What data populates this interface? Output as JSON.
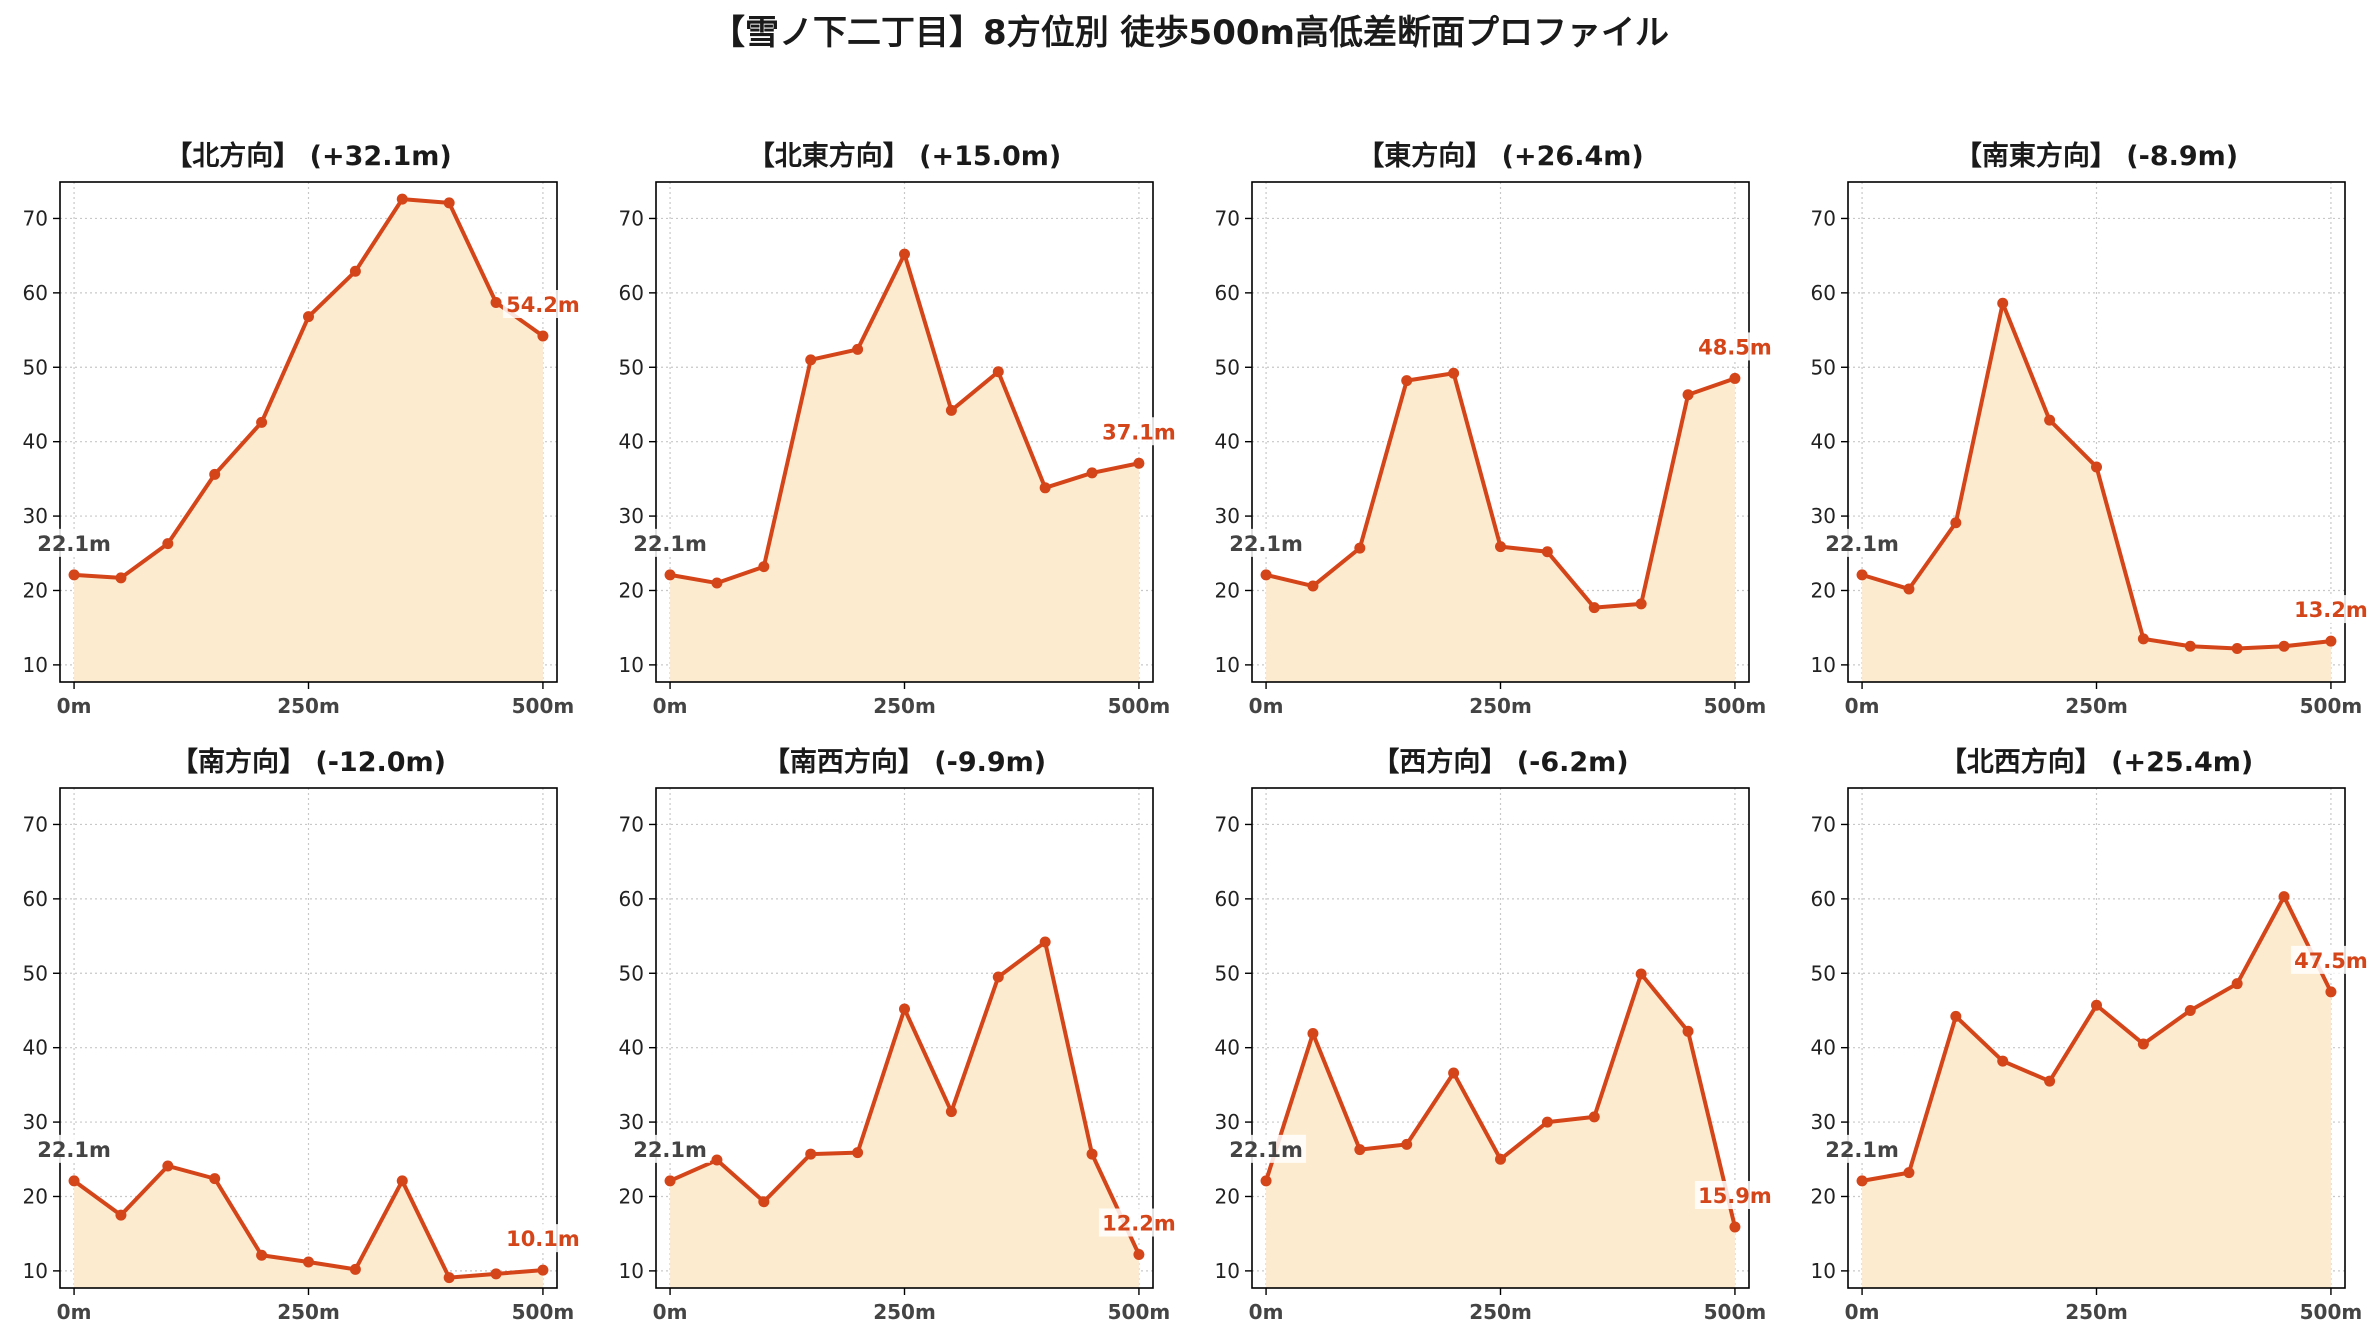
{
  "figure": {
    "title": "【雪ノ下二丁目】8方位別 徒歩500m高低差断面プロファイル"
  },
  "style": {
    "line_color": "#d4451a",
    "fill_color": "#fdebd0",
    "start_label_color": "#444444",
    "grid_color": "#c8c8c8"
  },
  "chart_data": [
    {
      "type": "area",
      "title": "【北方向】 (+32.1m)",
      "x": [
        0,
        50,
        100,
        150,
        200,
        250,
        300,
        350,
        400,
        450,
        500
      ],
      "y": [
        22.1,
        21.7,
        26.3,
        35.6,
        42.6,
        56.8,
        62.9,
        72.6,
        72.1,
        58.7,
        54.2
      ],
      "start_label": "22.1m",
      "end_label": "54.2m",
      "xlim": [
        -15,
        515
      ],
      "ylim": [
        7.7,
        74.9
      ],
      "xticks": [
        0,
        250,
        500
      ],
      "xtick_labels": [
        "0m",
        "250m",
        "500m"
      ],
      "yticks": [
        10,
        20,
        30,
        40,
        50,
        60,
        70
      ],
      "ytick_labels": [
        "10",
        "20",
        "30",
        "40",
        "50",
        "60",
        "70"
      ],
      "grid": true
    },
    {
      "type": "area",
      "title": "【北東方向】 (+15.0m)",
      "x": [
        0,
        50,
        100,
        150,
        200,
        250,
        300,
        350,
        400,
        450,
        500
      ],
      "y": [
        22.1,
        21.0,
        23.2,
        51.0,
        52.4,
        65.2,
        44.2,
        49.4,
        33.8,
        35.8,
        37.1
      ],
      "start_label": "22.1m",
      "end_label": "37.1m",
      "xlim": [
        -15,
        515
      ],
      "ylim": [
        7.7,
        74.9
      ],
      "xticks": [
        0,
        250,
        500
      ],
      "xtick_labels": [
        "0m",
        "250m",
        "500m"
      ],
      "yticks": [
        10,
        20,
        30,
        40,
        50,
        60,
        70
      ],
      "ytick_labels": [
        "10",
        "20",
        "30",
        "40",
        "50",
        "60",
        "70"
      ],
      "grid": true
    },
    {
      "type": "area",
      "title": "【東方向】 (+26.4m)",
      "x": [
        0,
        50,
        100,
        150,
        200,
        250,
        300,
        350,
        400,
        450,
        500
      ],
      "y": [
        22.1,
        20.6,
        25.7,
        48.2,
        49.2,
        25.9,
        25.2,
        17.7,
        18.2,
        46.3,
        48.5
      ],
      "start_label": "22.1m",
      "end_label": "48.5m",
      "xlim": [
        -15,
        515
      ],
      "ylim": [
        7.7,
        74.9
      ],
      "xticks": [
        0,
        250,
        500
      ],
      "xtick_labels": [
        "0m",
        "250m",
        "500m"
      ],
      "yticks": [
        10,
        20,
        30,
        40,
        50,
        60,
        70
      ],
      "ytick_labels": [
        "10",
        "20",
        "30",
        "40",
        "50",
        "60",
        "70"
      ],
      "grid": true
    },
    {
      "type": "area",
      "title": "【南東方向】 (-8.9m)",
      "x": [
        0,
        50,
        100,
        150,
        200,
        250,
        300,
        350,
        400,
        450,
        500
      ],
      "y": [
        22.1,
        20.2,
        29.1,
        58.6,
        42.9,
        36.6,
        13.5,
        12.5,
        12.2,
        12.5,
        13.2
      ],
      "start_label": "22.1m",
      "end_label": "13.2m",
      "xlim": [
        -15,
        515
      ],
      "ylim": [
        7.7,
        74.9
      ],
      "xticks": [
        0,
        250,
        500
      ],
      "xtick_labels": [
        "0m",
        "250m",
        "500m"
      ],
      "yticks": [
        10,
        20,
        30,
        40,
        50,
        60,
        70
      ],
      "ytick_labels": [
        "10",
        "20",
        "30",
        "40",
        "50",
        "60",
        "70"
      ],
      "grid": true
    },
    {
      "type": "area",
      "title": "【南方向】 (-12.0m)",
      "x": [
        0,
        50,
        100,
        150,
        200,
        250,
        300,
        350,
        400,
        450,
        500
      ],
      "y": [
        22.1,
        17.5,
        24.1,
        22.4,
        12.1,
        11.2,
        10.2,
        22.1,
        9.1,
        9.6,
        10.1
      ],
      "start_label": "22.1m",
      "end_label": "10.1m",
      "xlim": [
        -15,
        515
      ],
      "ylim": [
        7.7,
        74.9
      ],
      "xticks": [
        0,
        250,
        500
      ],
      "xtick_labels": [
        "0m",
        "250m",
        "500m"
      ],
      "yticks": [
        10,
        20,
        30,
        40,
        50,
        60,
        70
      ],
      "ytick_labels": [
        "10",
        "20",
        "30",
        "40",
        "50",
        "60",
        "70"
      ],
      "grid": true
    },
    {
      "type": "area",
      "title": "【南西方向】 (-9.9m)",
      "x": [
        0,
        50,
        100,
        150,
        200,
        250,
        300,
        350,
        400,
        450,
        500
      ],
      "y": [
        22.1,
        24.9,
        19.3,
        25.7,
        25.9,
        45.2,
        31.4,
        49.5,
        54.2,
        25.7,
        12.2
      ],
      "start_label": "22.1m",
      "end_label": "12.2m",
      "xlim": [
        -15,
        515
      ],
      "ylim": [
        7.7,
        74.9
      ],
      "xticks": [
        0,
        250,
        500
      ],
      "xtick_labels": [
        "0m",
        "250m",
        "500m"
      ],
      "yticks": [
        10,
        20,
        30,
        40,
        50,
        60,
        70
      ],
      "ytick_labels": [
        "10",
        "20",
        "30",
        "40",
        "50",
        "60",
        "70"
      ],
      "grid": true
    },
    {
      "type": "area",
      "title": "【西方向】 (-6.2m)",
      "x": [
        0,
        50,
        100,
        150,
        200,
        250,
        300,
        350,
        400,
        450,
        500
      ],
      "y": [
        22.1,
        41.9,
        26.3,
        27.0,
        36.6,
        25.0,
        30.0,
        30.7,
        49.9,
        42.2,
        15.9
      ],
      "start_label": "22.1m",
      "end_label": "15.9m",
      "xlim": [
        -15,
        515
      ],
      "ylim": [
        7.7,
        74.9
      ],
      "xticks": [
        0,
        250,
        500
      ],
      "xtick_labels": [
        "0m",
        "250m",
        "500m"
      ],
      "yticks": [
        10,
        20,
        30,
        40,
        50,
        60,
        70
      ],
      "ytick_labels": [
        "10",
        "20",
        "30",
        "40",
        "50",
        "60",
        "70"
      ],
      "grid": true
    },
    {
      "type": "area",
      "title": "【北西方向】 (+25.4m)",
      "x": [
        0,
        50,
        100,
        150,
        200,
        250,
        300,
        350,
        400,
        450,
        500
      ],
      "y": [
        22.1,
        23.2,
        44.2,
        38.2,
        35.5,
        45.7,
        40.5,
        45.0,
        48.6,
        60.3,
        47.5
      ],
      "start_label": "22.1m",
      "end_label": "47.5m",
      "xlim": [
        -15,
        515
      ],
      "ylim": [
        7.7,
        74.9
      ],
      "xticks": [
        0,
        250,
        500
      ],
      "xtick_labels": [
        "0m",
        "250m",
        "500m"
      ],
      "yticks": [
        10,
        20,
        30,
        40,
        50,
        60,
        70
      ],
      "ytick_labels": [
        "10",
        "20",
        "30",
        "40",
        "50",
        "60",
        "70"
      ],
      "grid": true
    }
  ]
}
